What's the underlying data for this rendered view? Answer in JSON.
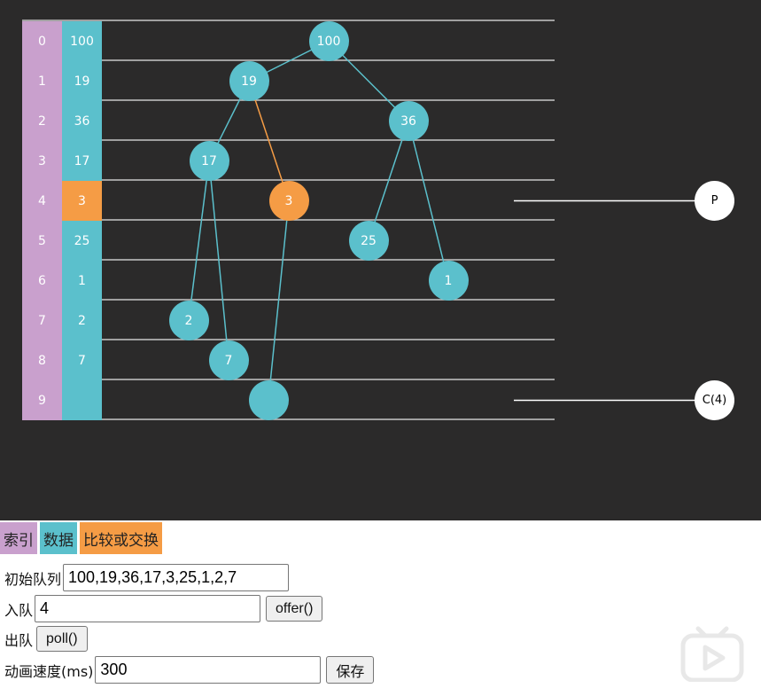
{
  "colors": {
    "index": "#c9a0cd",
    "data": "#5bc0cc",
    "compare_swap": "#f59c45",
    "background": "#2b2a2a"
  },
  "array": {
    "indices": [
      "0",
      "1",
      "2",
      "3",
      "4",
      "5",
      "6",
      "7",
      "8",
      "9"
    ],
    "values": [
      "100",
      "19",
      "36",
      "17",
      "3",
      "25",
      "1",
      "2",
      "7",
      ""
    ],
    "highlighted_index": 4
  },
  "tree": {
    "nodes": [
      {
        "label": "100",
        "highlight": false
      },
      {
        "label": "19",
        "highlight": false
      },
      {
        "label": "36",
        "highlight": false
      },
      {
        "label": "17",
        "highlight": false
      },
      {
        "label": "3",
        "highlight": true
      },
      {
        "label": "25",
        "highlight": false
      },
      {
        "label": "1",
        "highlight": false
      },
      {
        "label": "2",
        "highlight": false
      },
      {
        "label": "7",
        "highlight": false
      },
      {
        "label": "",
        "highlight": false
      }
    ],
    "edges": [
      [
        0,
        1
      ],
      [
        0,
        2
      ],
      [
        1,
        3
      ],
      [
        1,
        4
      ],
      [
        2,
        5
      ],
      [
        2,
        6
      ],
      [
        3,
        7
      ],
      [
        3,
        8
      ],
      [
        4,
        9
      ]
    ],
    "highlighted_edges": [
      [
        1,
        4
      ]
    ]
  },
  "pointers": {
    "p_label": "P",
    "c_label": "C(4)"
  },
  "legend": {
    "index": "索引",
    "data": "数据",
    "compare": "比较或交换"
  },
  "controls": {
    "initial_label": "初始队列",
    "initial_value": "100,19,36,17,3,25,1,2,7",
    "offer_label": "入队",
    "offer_value": "4",
    "offer_button": "offer()",
    "poll_label": "出队",
    "poll_button": "poll()",
    "speed_label": "动画速度(ms)",
    "speed_value": "300",
    "save_button": "保存"
  }
}
